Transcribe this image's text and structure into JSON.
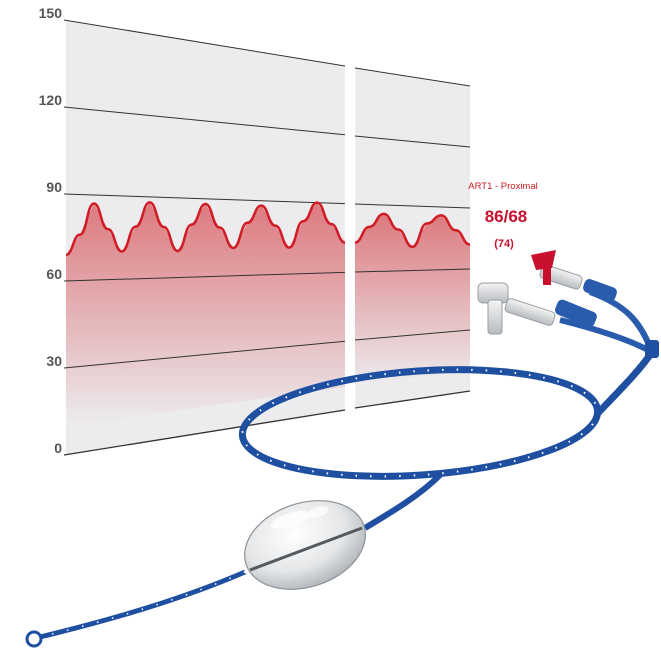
{
  "chart_data": {
    "type": "line",
    "title": "",
    "xlabel": "",
    "ylabel": "",
    "ylim": [
      0,
      150
    ],
    "yticks": [
      "150",
      "120",
      "90",
      "60",
      "30",
      "0"
    ],
    "grid": true,
    "series": [
      {
        "segment": "main",
        "x": [
          0,
          0.5,
          1,
          1.5,
          2,
          2.5,
          3,
          3.5,
          4,
          4.5,
          5,
          5.5,
          6,
          6.5,
          7,
          7.5,
          8,
          8.5,
          9,
          9.5,
          10
        ],
        "values": [
          69,
          76,
          87,
          78,
          70,
          79,
          88,
          79,
          70,
          80,
          88,
          79,
          71,
          81,
          88,
          80,
          71,
          82,
          90,
          81,
          73
        ]
      },
      {
        "segment": "after-gap",
        "x": [
          0,
          0.5,
          1,
          1.5,
          2,
          2.5,
          3,
          3.5,
          4
        ],
        "values": [
          73,
          80,
          86,
          79,
          71,
          82,
          86,
          79,
          72
        ]
      }
    ]
  },
  "readout": {
    "label": "ART1 - Proximal",
    "pressure": "86/68",
    "mean": "(74)"
  },
  "colors": {
    "waveform": "#d01c24",
    "catheter": "#1f4fa0",
    "grid": "#333333",
    "panel": "#ececee"
  },
  "illustration": {
    "subject": "balloon-catheter",
    "icon": "catheter-with-stopcock-icon"
  }
}
